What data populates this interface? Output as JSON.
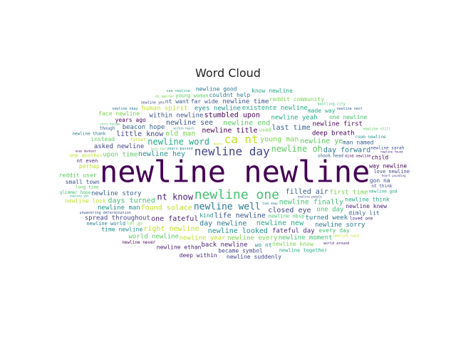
{
  "title": "Word Cloud",
  "chart_data": {
    "type": "wordcloud",
    "title": "Word Cloud",
    "words": [
      {
        "text": "newline newline",
        "weight": 42
      },
      {
        "text": "newline one",
        "weight": 18
      },
      {
        "text": "newline day",
        "weight": 16
      },
      {
        "text": "ca nt",
        "weight": 16
      },
      {
        "text": "newline well",
        "weight": 13
      },
      {
        "text": "newline oh",
        "weight": 12
      },
      {
        "text": "newline word",
        "weight": 12
      },
      {
        "text": "nt know",
        "weight": 12
      },
      {
        "text": "young man",
        "weight": 10
      },
      {
        "text": "filled air",
        "weight": 10
      },
      {
        "text": "life newline",
        "weight": 10
      },
      {
        "text": "newline hey",
        "weight": 10
      },
      {
        "text": "newline title",
        "weight": 10
      },
      {
        "text": "newline finally",
        "weight": 10
      },
      {
        "text": "closed eye",
        "weight": 10
      },
      {
        "text": "found solace",
        "weight": 10
      },
      {
        "text": "day newline",
        "weight": 10
      },
      {
        "text": "newline end",
        "weight": 10
      },
      {
        "text": "newline new",
        "weight": 10
      },
      {
        "text": "one fateful",
        "weight": 10
      },
      {
        "text": "old man",
        "weight": 10
      },
      {
        "text": "last time",
        "weight": 10
      },
      {
        "text": "newline see",
        "weight": 10
      },
      {
        "text": "newline looked",
        "weight": 10
      },
      {
        "text": "stumbled upon",
        "weight": 10
      },
      {
        "text": "days turned",
        "weight": 10
      },
      {
        "text": "little know",
        "weight": 10
      },
      {
        "text": "right newline",
        "weight": 10
      },
      {
        "text": "day forward",
        "weight": 10
      },
      {
        "text": "newline ye",
        "weight": 10
      },
      {
        "text": "newline yeah",
        "weight": 9
      },
      {
        "text": "fateful day",
        "weight": 9
      },
      {
        "text": "newline every",
        "weight": 9
      },
      {
        "text": "newline story",
        "weight": 9
      },
      {
        "text": "within newline",
        "weight": 9
      },
      {
        "text": "eyes newline",
        "weight": 9
      },
      {
        "text": "deep breath",
        "weight": 9
      },
      {
        "text": "one day",
        "weight": 9
      },
      {
        "text": "asked newline",
        "weight": 9
      },
      {
        "text": "newline year",
        "weight": 9
      },
      {
        "text": "turned week",
        "weight": 9
      },
      {
        "text": "upon time",
        "weight": 9
      },
      {
        "text": "existence newline",
        "weight": 9
      },
      {
        "text": "back newline",
        "weight": 9
      },
      {
        "text": "first time",
        "weight": 9
      },
      {
        "text": "beacon hope",
        "weight": 9
      },
      {
        "text": "newline time",
        "weight": 9
      },
      {
        "text": "newline man",
        "weight": 9
      },
      {
        "text": "newline first",
        "weight": 9
      },
      {
        "text": "newline moment",
        "weight": 9
      },
      {
        "text": "spread throughout",
        "weight": 9
      },
      {
        "text": "human spirit",
        "weight": 9
      },
      {
        "text": "newline sorry",
        "weight": 9
      },
      {
        "text": "world newline",
        "weight": 9
      },
      {
        "text": "newline think",
        "weight": 8
      },
      {
        "text": "newline knew",
        "weight": 8
      },
      {
        "text": "newline know",
        "weight": 8
      },
      {
        "text": "man named",
        "weight": 8
      },
      {
        "text": "far wide",
        "weight": 8
      },
      {
        "text": "kind",
        "weight": 8
      },
      {
        "text": "years ago",
        "weight": 8
      },
      {
        "text": "every day",
        "weight": 8
      },
      {
        "text": "became symbol",
        "weight": 8
      },
      {
        "text": "perhap",
        "weight": 8
      },
      {
        "text": "couldnt help",
        "weight": 8
      },
      {
        "text": "instead",
        "weight": 8
      },
      {
        "text": "made way",
        "weight": 8
      },
      {
        "text": "newline ethan",
        "weight": 8
      },
      {
        "text": "reddit community",
        "weight": 8
      },
      {
        "text": "nt want",
        "weight": 8
      },
      {
        "text": "small town",
        "weight": 8
      },
      {
        "text": "time newline",
        "weight": 8
      },
      {
        "text": "way newline",
        "weight": 8
      },
      {
        "text": "one newline",
        "weight": 8
      },
      {
        "text": "newline suddenly",
        "weight": 8
      },
      {
        "text": "newline look",
        "weight": 8
      },
      {
        "text": "newline good",
        "weight": 8
      },
      {
        "text": "reddit user",
        "weight": 8
      },
      {
        "text": "know newline",
        "weight": 8
      },
      {
        "text": "deep within",
        "weight": 8
      },
      {
        "text": "face newline",
        "weight": 8
      },
      {
        "text": "dimly lit",
        "weight": 8
      },
      {
        "text": "gon na",
        "weight": 8
      },
      {
        "text": "wo nt",
        "weight": 8
      },
      {
        "text": "child",
        "weight": 8
      },
      {
        "text": "newline nbsp",
        "weight": 7
      },
      {
        "text": "love newline",
        "weight": 7
      },
      {
        "text": "one another",
        "weight": 7
      },
      {
        "text": "newline world",
        "weight": 7
      },
      {
        "text": "young woman",
        "weight": 7
      },
      {
        "text": "newline together",
        "weight": 7
      },
      {
        "text": "nt even",
        "weight": 7
      },
      {
        "text": "used",
        "weight": 7
      },
      {
        "text": "shook head",
        "weight": 6
      },
      {
        "text": "newline sarah",
        "weight": 6
      },
      {
        "text": "room newline",
        "weight": 6
      },
      {
        "text": "newline never",
        "weight": 6
      },
      {
        "text": "glimmer hope",
        "weight": 6
      },
      {
        "text": "nt think",
        "weight": 6
      },
      {
        "text": "father",
        "weight": 6
      },
      {
        "text": "newline thank",
        "weight": 6
      },
      {
        "text": "long time",
        "weight": 6
      },
      {
        "text": "newline god",
        "weight": 6
      },
      {
        "text": "loved one",
        "weight": 6
      },
      {
        "text": "let go",
        "weight": 6
      },
      {
        "text": "though",
        "weight": 6
      },
      {
        "text": "unwavering determination",
        "weight": 5
      },
      {
        "text": "years passed",
        "weight": 5
      },
      {
        "text": "mind newline",
        "weight": 5
      },
      {
        "text": "bustling city",
        "weight": 5
      },
      {
        "text": "newline yes",
        "weight": 5
      },
      {
        "text": "newline said",
        "weight": 5
      },
      {
        "text": "newline okay",
        "weight": 5
      },
      {
        "text": "newline still",
        "weight": 5
      },
      {
        "text": "see newline",
        "weight": 5
      },
      {
        "text": "world around",
        "weight": 5
      },
      {
        "text": "nt matter",
        "weight": 5
      },
      {
        "text": "newline next",
        "weight": 5
      },
      {
        "text": "newline people",
        "weight": 4
      },
      {
        "text": "within heart",
        "weight": 4
      },
      {
        "text": "even darkest",
        "weight": 4
      },
      {
        "text": "story became",
        "weight": 4
      },
      {
        "text": "heart pounding",
        "weight": 4
      },
      {
        "text": "death",
        "weight": 4
      },
      {
        "text": "took deep",
        "weight": 4
      },
      {
        "text": "help feel",
        "weight": 4
      },
      {
        "text": "newline yet",
        "weight": 4
      },
      {
        "text": "newline found",
        "weight": 4
      }
    ]
  }
}
